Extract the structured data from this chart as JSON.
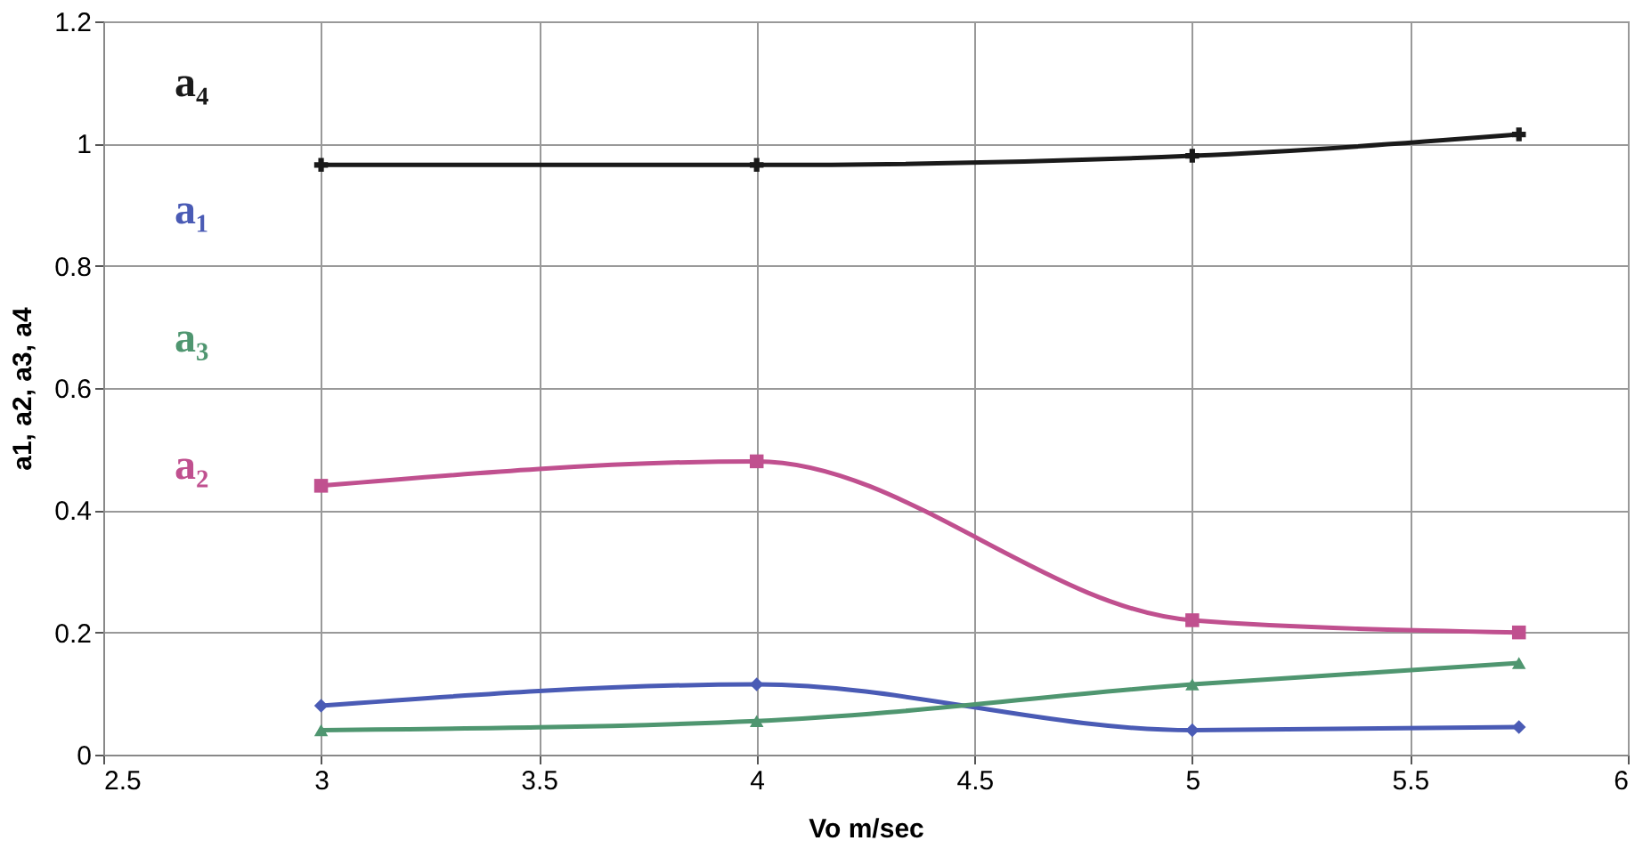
{
  "chart_data": {
    "type": "line",
    "xlabel": "Vo m/sec",
    "ylabel": "a1, a2, a3, a4",
    "x": [
      3,
      4,
      5,
      5.75
    ],
    "series": [
      {
        "name": "a₄",
        "color": "#1a1a1a",
        "marker": "cross",
        "values": [
          0.965,
          0.965,
          0.98,
          1.015
        ]
      },
      {
        "name": "a₁",
        "color": "#4a5bb5",
        "marker": "diamond",
        "values": [
          0.08,
          0.115,
          0.04,
          0.045
        ]
      },
      {
        "name": "a₃",
        "color": "#4f9670",
        "marker": "triangle",
        "values": [
          0.04,
          0.055,
          0.115,
          0.15
        ]
      },
      {
        "name": "a₂",
        "color": "#c0508f",
        "marker": "square",
        "values": [
          0.44,
          0.48,
          0.22,
          0.2
        ]
      }
    ],
    "xlim": [
      2.5,
      6
    ],
    "xticks": [
      2.5,
      3,
      3.5,
      4,
      4.5,
      5,
      5.5,
      6
    ],
    "ylim": [
      0,
      1.2
    ],
    "yticks": [
      0,
      0.2,
      0.4,
      0.6,
      0.8,
      1,
      1.2
    ],
    "grid": true,
    "legend": "left",
    "line_style": "solid"
  }
}
